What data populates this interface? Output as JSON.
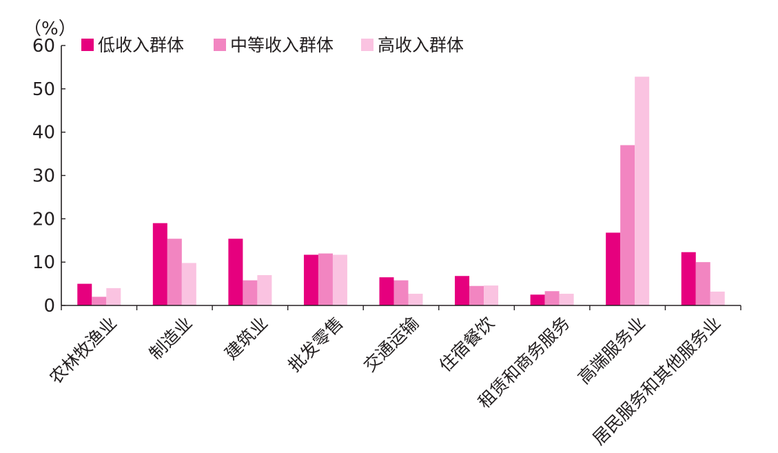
{
  "chart_data": {
    "type": "bar",
    "ylabel": "（%）",
    "ylim": [
      0,
      60
    ],
    "yticks": [
      0,
      10,
      20,
      30,
      40,
      50,
      60
    ],
    "grid": false,
    "legend_position": "top-left",
    "categories": [
      "农林牧渔业",
      "制造业",
      "建筑业",
      "批发零售",
      "交通运输",
      "住宿餐饮",
      "租赁和商务服务",
      "高端服务业",
      "居民服务和其他服务业"
    ],
    "series": [
      {
        "name": "低收入群体",
        "color": "#e6007e",
        "values": [
          5.0,
          19.0,
          15.4,
          11.7,
          6.5,
          6.8,
          2.5,
          16.8,
          12.3
        ]
      },
      {
        "name": "中等收入群体",
        "color": "#f285c1",
        "values": [
          2.0,
          15.4,
          5.8,
          12.0,
          5.8,
          4.5,
          3.3,
          37.0,
          10.0
        ]
      },
      {
        "name": "高收入群体",
        "color": "#fac3e1",
        "values": [
          4.0,
          9.8,
          7.0,
          11.7,
          2.7,
          4.6,
          2.7,
          52.8,
          3.2
        ]
      }
    ]
  }
}
